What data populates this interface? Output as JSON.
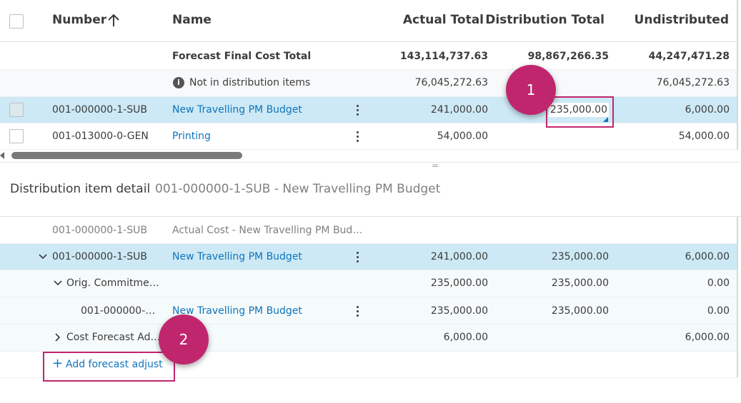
{
  "colors": {
    "accent": "#c0266e",
    "link": "#0f75bc",
    "highlight_row": "#cde9f5"
  },
  "top_table": {
    "headers": {
      "number": "Number",
      "name": "Name",
      "actual_total": "Actual Total",
      "distribution_total": "Distribution Total",
      "undistributed": "Undistributed"
    },
    "sort_icon": "arrow-up-icon",
    "summary": {
      "label": "Forecast Final Cost Total",
      "actual_total": "143,114,737.63",
      "distribution_total": "98,867,266.35",
      "undistributed": "44,247,471.28"
    },
    "not_in": {
      "icon": "info-icon",
      "label": "Not in distribution items",
      "actual_total": "76,045,272.63",
      "undistributed": "76,045,272.63"
    },
    "rows": [
      {
        "number": "001-000000-1-SUB",
        "name": "New Travelling PM Budget",
        "actual_total": "241,000.00",
        "distribution_total": "235,000.00",
        "undistributed": "6,000.00"
      },
      {
        "number": "001-013000-0-GEN",
        "name": "Printing",
        "actual_total": "54,000.00",
        "distribution_total": "",
        "undistributed": "54,000.00"
      }
    ]
  },
  "splitter": {
    "glyph": "="
  },
  "detail": {
    "title": "Distribution item detail",
    "subtitle": "001-000000-1-SUB - New Travelling PM Budget",
    "rows": [
      {
        "number": "001-000000-1-SUB",
        "name": "Actual Cost - New Travelling PM Bud…"
      },
      {
        "number": "001-000000-1-SUB",
        "name": "New Travelling PM Budget",
        "actual_total": "241,000.00",
        "distribution_total": "235,000.00",
        "undistributed": "6,000.00"
      },
      {
        "number": "Orig. Commitme…",
        "actual_total": "235,000.00",
        "distribution_total": "235,000.00",
        "undistributed": "0.00"
      },
      {
        "number": "001-000000-…",
        "name": "New Travelling PM Budget",
        "actual_total": "235,000.00",
        "distribution_total": "235,000.00",
        "undistributed": "0.00"
      },
      {
        "number": "Cost Forecast Ad…",
        "actual_total": "6,000.00",
        "undistributed": "6,000.00"
      }
    ],
    "add_button": "Add forecast adjust"
  },
  "annotations": [
    "1",
    "2"
  ]
}
